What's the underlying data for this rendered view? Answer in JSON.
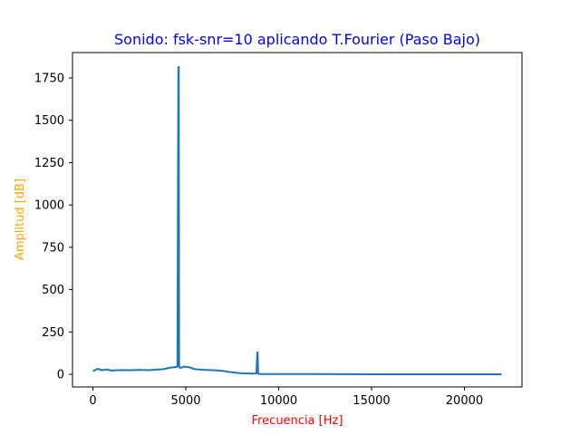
{
  "chart_data": {
    "type": "line",
    "title": "Sonido: fsk-snr=10 aplicando T.Fourier (Paso Bajo)",
    "xlabel": "Frecuencia [Hz]",
    "ylabel": "Amplitud [dB]",
    "xlim": [
      -1100,
      23100
    ],
    "ylim": [
      -75,
      1900
    ],
    "xticks": [
      0,
      5000,
      10000,
      15000,
      20000
    ],
    "xtick_labels": [
      "0",
      "5000",
      "10000",
      "15000",
      "20000"
    ],
    "yticks": [
      0,
      250,
      500,
      750,
      1000,
      1250,
      1500,
      1750
    ],
    "ytick_labels": [
      "0",
      "250",
      "500",
      "750",
      "1000",
      "1250",
      "1500",
      "1750"
    ],
    "grid": false,
    "legend": "none",
    "series": [
      {
        "color": "#1f77b4",
        "x": [
          0,
          250,
          500,
          750,
          1000,
          1500,
          2000,
          2500,
          3000,
          3500,
          3800,
          4100,
          4400,
          4550,
          4600,
          4620,
          4640,
          4660,
          4700,
          4800,
          4900,
          5000,
          5100,
          5500,
          6000,
          6500,
          7000,
          7200,
          7500,
          7800,
          8000,
          8300,
          8500,
          8700,
          8800,
          8850,
          8870,
          8890,
          8950,
          9200,
          10000,
          12000,
          15000,
          18000,
          20000,
          22000
        ],
        "y": [
          18,
          32,
          24,
          28,
          22,
          25,
          24,
          26,
          24,
          28,
          30,
          38,
          42,
          44,
          1810,
          1815,
          52,
          42,
          38,
          40,
          46,
          42,
          44,
          30,
          26,
          24,
          20,
          16,
          12,
          8,
          6,
          5,
          4,
          4,
          5,
          128,
          130,
          4,
          2,
          1,
          1,
          1,
          0,
          0,
          0,
          0
        ]
      }
    ]
  }
}
